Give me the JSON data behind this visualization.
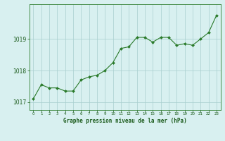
{
  "x": [
    0,
    1,
    2,
    3,
    4,
    5,
    6,
    7,
    8,
    9,
    10,
    11,
    12,
    13,
    14,
    15,
    16,
    17,
    18,
    19,
    20,
    21,
    22,
    23
  ],
  "y": [
    1017.1,
    1017.55,
    1017.45,
    1017.45,
    1017.35,
    1017.35,
    1017.7,
    1017.8,
    1017.85,
    1018.0,
    1018.25,
    1018.7,
    1018.75,
    1019.05,
    1019.05,
    1018.9,
    1019.05,
    1019.05,
    1018.8,
    1018.85,
    1018.8,
    1019.0,
    1019.2,
    1019.75
  ],
  "line_color": "#2a7a2a",
  "marker_color": "#2a7a2a",
  "bg_color": "#d8f0f0",
  "grid_color": "#a8cece",
  "xlabel": "Graphe pression niveau de la mer (hPa)",
  "xlabel_color": "#1a5a1a",
  "tick_color": "#1a5a1a",
  "ylim": [
    1016.75,
    1020.1
  ],
  "yticks": [
    1017,
    1018,
    1019
  ],
  "xlim": [
    -0.5,
    23.5
  ],
  "axis_color": "#2a7a2a",
  "figsize": [
    3.2,
    2.0
  ],
  "dpi": 100
}
